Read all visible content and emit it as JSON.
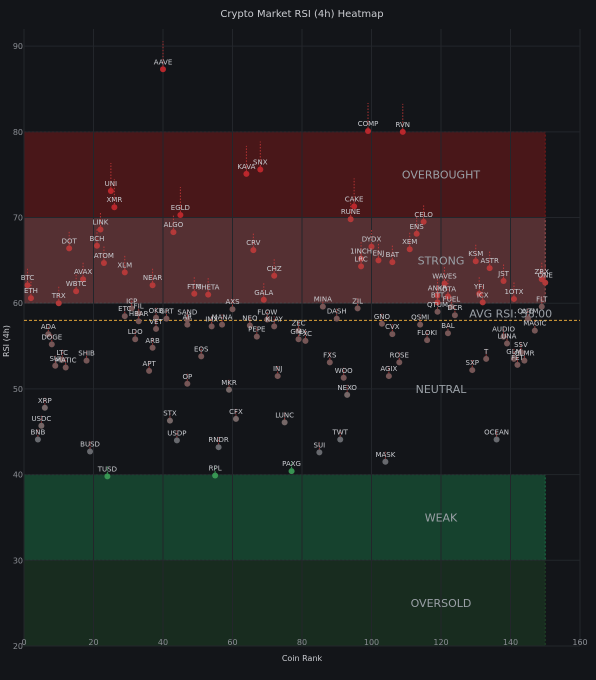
{
  "chart_data": {
    "type": "scatter",
    "title": "Crypto Market RSI (4h) Heatmap",
    "xlabel": "Coin Rank",
    "ylabel": "RSI (4h)",
    "xlim": [
      0,
      160
    ],
    "ylim": [
      20,
      92
    ],
    "xticks": [
      0,
      20,
      40,
      60,
      80,
      100,
      120,
      140,
      160
    ],
    "yticks": [
      20,
      30,
      40,
      50,
      60,
      70,
      80,
      90
    ],
    "grid": true,
    "average_rsi": 58.0,
    "average_label": "AVG RSI: 58.00",
    "zones": [
      {
        "label": "OVERBOUGHT",
        "y0": 80,
        "y1": 70,
        "color": "#8b1a1a",
        "opacity": 0.45
      },
      {
        "label": "STRONG",
        "y0": 70,
        "y1": 60,
        "color": "#b85a5a",
        "opacity": 0.4
      },
      {
        "label": "NEUTRAL",
        "y0": 60,
        "y1": 40,
        "color": "#131519",
        "opacity": 0
      },
      {
        "label": "WEAK",
        "y0": 40,
        "y1": 30,
        "color": "#1a7a4a",
        "opacity": 0.45
      },
      {
        "label": "OVERSOLD",
        "y0": 30,
        "y1": 20,
        "color": "#1f4a28",
        "opacity": 0.45
      }
    ],
    "zone_labels": [
      {
        "text": "OVERBOUGHT",
        "x": 120,
        "y": 75
      },
      {
        "text": "STRONG",
        "x": 120,
        "y": 65
      },
      {
        "text": "NEUTRAL",
        "x": 120,
        "y": 50
      },
      {
        "text": "WEAK",
        "x": 120,
        "y": 35
      },
      {
        "text": "OVERSOLD",
        "x": 120,
        "y": 25
      }
    ],
    "points": [
      {
        "name": "AAVE",
        "x": 40,
        "y": 87.3
      },
      {
        "name": "COMP",
        "x": 99,
        "y": 80.1
      },
      {
        "name": "RVN",
        "x": 109,
        "y": 80
      },
      {
        "name": "KAVA",
        "x": 64,
        "y": 75.1
      },
      {
        "name": "SNX",
        "x": 68,
        "y": 75.6
      },
      {
        "name": "UNI",
        "x": 25,
        "y": 73.1
      },
      {
        "name": "XMR",
        "x": 26,
        "y": 71.2
      },
      {
        "name": "EGLD",
        "x": 45,
        "y": 70.3
      },
      {
        "name": "ALGO",
        "x": 43,
        "y": 68.3
      },
      {
        "name": "CAKE",
        "x": 95,
        "y": 71.3
      },
      {
        "name": "RUNE",
        "x": 94,
        "y": 69.8
      },
      {
        "name": "CELO",
        "x": 115,
        "y": 69.5
      },
      {
        "name": "ENS",
        "x": 113,
        "y": 68.1
      },
      {
        "name": "LINK",
        "x": 22,
        "y": 68.6
      },
      {
        "name": "DYDX",
        "x": 100,
        "y": 66.6
      },
      {
        "name": "XEM",
        "x": 111,
        "y": 66.3
      },
      {
        "name": "CRV",
        "x": 66,
        "y": 66.2
      },
      {
        "name": "DOT",
        "x": 13,
        "y": 66.4
      },
      {
        "name": "BCH",
        "x": 21,
        "y": 66.7
      },
      {
        "name": "1INCH",
        "x": 97,
        "y": 65.2
      },
      {
        "name": "ENJ",
        "x": 102,
        "y": 65
      },
      {
        "name": "BAT",
        "x": 106,
        "y": 64.8
      },
      {
        "name": "LRC",
        "x": 97,
        "y": 64.3
      },
      {
        "name": "ATOM",
        "x": 23,
        "y": 64.7
      },
      {
        "name": "KSM",
        "x": 130,
        "y": 64.9
      },
      {
        "name": "XLM",
        "x": 29,
        "y": 63.6
      },
      {
        "name": "ASTR",
        "x": 134,
        "y": 64.1
      },
      {
        "name": "CHZ",
        "x": 72,
        "y": 63.2
      },
      {
        "name": "WAVES",
        "x": 121,
        "y": 62.3
      },
      {
        "name": "JST",
        "x": 138,
        "y": 62.6
      },
      {
        "name": "ZRX",
        "x": 149,
        "y": 62.8
      },
      {
        "name": "ONE",
        "x": 150,
        "y": 62.4
      },
      {
        "name": "AVAX",
        "x": 17,
        "y": 62.8
      },
      {
        "name": "NEAR",
        "x": 37,
        "y": 62.1
      },
      {
        "name": "BTC",
        "x": 1,
        "y": 62.1
      },
      {
        "name": "YFI",
        "x": 131,
        "y": 61.1
      },
      {
        "name": "WBTC",
        "x": 15,
        "y": 61.4
      },
      {
        "name": "FTM",
        "x": 49,
        "y": 61.1
      },
      {
        "name": "THETA",
        "x": 53,
        "y": 61
      },
      {
        "name": "GALA",
        "x": 69,
        "y": 60.4
      },
      {
        "name": "ANKR",
        "x": 119,
        "y": 60.9
      },
      {
        "name": "IOTA",
        "x": 122,
        "y": 60.8
      },
      {
        "name": "ETH",
        "x": 2,
        "y": 60.6
      },
      {
        "name": "BTT",
        "x": 119,
        "y": 60.1
      },
      {
        "name": "FUEL",
        "x": 123,
        "y": 59.6
      },
      {
        "name": "TRX",
        "x": 10,
        "y": 60
      },
      {
        "name": "ICX",
        "x": 132,
        "y": 60.1
      },
      {
        "name": "1OTX",
        "x": 141,
        "y": 60.5
      },
      {
        "name": "MINA",
        "x": 86,
        "y": 59.6
      },
      {
        "name": "ZIL",
        "x": 96,
        "y": 59.4
      },
      {
        "name": "FLT",
        "x": 149,
        "y": 59.6
      },
      {
        "name": "ICP",
        "x": 31,
        "y": 59.4
      },
      {
        "name": "FIL",
        "x": 33,
        "y": 58.8
      },
      {
        "name": "QTUM",
        "x": 119,
        "y": 59
      },
      {
        "name": "DCR",
        "x": 124,
        "y": 58.6
      },
      {
        "name": "AXS",
        "x": 60,
        "y": 59.3
      },
      {
        "name": "ETC",
        "x": 29,
        "y": 58.5
      },
      {
        "name": "OKB",
        "x": 38,
        "y": 58.3
      },
      {
        "name": "GRT",
        "x": 41,
        "y": 58.2
      },
      {
        "name": "SAND",
        "x": 47,
        "y": 58.1
      },
      {
        "name": "FLOW",
        "x": 70,
        "y": 58.1
      },
      {
        "name": "DASH",
        "x": 90,
        "y": 58.2
      },
      {
        "name": "QNTM",
        "x": 145,
        "y": 58.2
      },
      {
        "name": "HBAR",
        "x": 33,
        "y": 57.9
      },
      {
        "name": "AR",
        "x": 47,
        "y": 57.5
      },
      {
        "name": "IMX",
        "x": 54,
        "y": 57.3
      },
      {
        "name": "MANA",
        "x": 57,
        "y": 57.5
      },
      {
        "name": "NEO",
        "x": 65,
        "y": 57.4
      },
      {
        "name": "KLAY",
        "x": 72,
        "y": 57.3
      },
      {
        "name": "GNO",
        "x": 103,
        "y": 57.6
      },
      {
        "name": "QSMI",
        "x": 114,
        "y": 57.5
      },
      {
        "name": "VET",
        "x": 38,
        "y": 57
      },
      {
        "name": "ZEC",
        "x": 79,
        "y": 56.8
      },
      {
        "name": "ADA",
        "x": 7,
        "y": 56.4
      },
      {
        "name": "CVX",
        "x": 106,
        "y": 56.4
      },
      {
        "name": "BAL",
        "x": 122,
        "y": 56.5
      },
      {
        "name": "AUDIO",
        "x": 138,
        "y": 56.1
      },
      {
        "name": "PEPE",
        "x": 67,
        "y": 56.1
      },
      {
        "name": "GMX",
        "x": 79,
        "y": 55.8
      },
      {
        "name": "FLOKI",
        "x": 116,
        "y": 55.7
      },
      {
        "name": "APT",
        "x": 36,
        "y": 52.1
      },
      {
        "name": "MAGIC",
        "x": 147,
        "y": 56.8
      },
      {
        "name": "LDO",
        "x": 32,
        "y": 55.8
      },
      {
        "name": "FXC",
        "x": 81,
        "y": 55.6
      },
      {
        "name": "DOGE",
        "x": 8,
        "y": 55.2
      },
      {
        "name": "LUNA",
        "x": 139,
        "y": 55.3
      },
      {
        "name": "SSV",
        "x": 143,
        "y": 54.3
      },
      {
        "name": "ARB",
        "x": 37,
        "y": 54.8
      },
      {
        "name": "EOS",
        "x": 51,
        "y": 53.8
      },
      {
        "name": "LTC",
        "x": 11,
        "y": 53.4
      },
      {
        "name": "SHIB",
        "x": 18,
        "y": 53.3
      },
      {
        "name": "MATIC",
        "x": 12,
        "y": 52.5
      },
      {
        "name": "SUI",
        "x": 9,
        "y": 52.7
      },
      {
        "name": "ROSE",
        "x": 108,
        "y": 53.1
      },
      {
        "name": "FXS",
        "x": 88,
        "y": 53.1
      },
      {
        "name": "GLMR",
        "x": 144,
        "y": 53.3
      },
      {
        "name": "GLM",
        "x": 141,
        "y": 53.5
      },
      {
        "name": "T",
        "x": 133,
        "y": 53.5
      },
      {
        "name": "FET",
        "x": 142,
        "y": 52.8
      },
      {
        "name": "SXP",
        "x": 129,
        "y": 52.2
      },
      {
        "name": "INJ",
        "x": 73,
        "y": 51.5
      },
      {
        "name": "WOO",
        "x": 92,
        "y": 51.3
      },
      {
        "name": "AGIX",
        "x": 105,
        "y": 51.5
      },
      {
        "name": "OP",
        "x": 47,
        "y": 50.6
      },
      {
        "name": "MKR",
        "x": 59,
        "y": 49.9
      },
      {
        "name": "NEXO",
        "x": 93,
        "y": 49.3
      },
      {
        "name": "XRP",
        "x": 6,
        "y": 47.8
      },
      {
        "name": "CFX",
        "x": 61,
        "y": 46.5
      },
      {
        "name": "STX",
        "x": 42,
        "y": 46.3
      },
      {
        "name": "LUNC",
        "x": 75,
        "y": 46.1
      },
      {
        "name": "USDC",
        "x": 5,
        "y": 45.7
      },
      {
        "name": "BNB",
        "x": 4,
        "y": 44.1
      },
      {
        "name": "USDP",
        "x": 44,
        "y": 44
      },
      {
        "name": "TWT",
        "x": 91,
        "y": 44.1
      },
      {
        "name": "OCEAN",
        "x": 136,
        "y": 44.1
      },
      {
        "name": "RNDR",
        "x": 56,
        "y": 43.2
      },
      {
        "name": "BUSD",
        "x": 19,
        "y": 42.7
      },
      {
        "name": "SUI",
        "x": 85,
        "y": 42.6
      },
      {
        "name": "MASK",
        "x": 104,
        "y": 41.5
      },
      {
        "name": "PAXG",
        "x": 77,
        "y": 40.4
      },
      {
        "name": "TUSD",
        "x": 24,
        "y": 39.8
      },
      {
        "name": "RPL",
        "x": 55,
        "y": 39.9
      }
    ]
  }
}
